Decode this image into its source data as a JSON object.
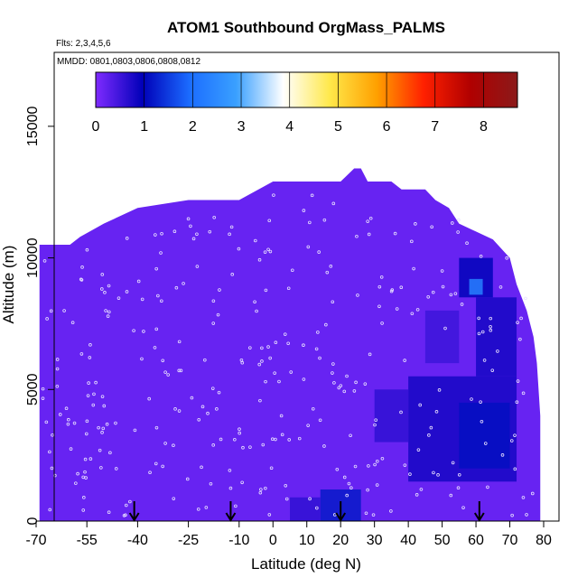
{
  "chart_data": {
    "type": "heatmap",
    "title": "ATOM1 Southbound OrgMass_PALMS",
    "flights_label": "Flts: 2,3,4,5,6",
    "dates_label": "MMDD: 0801,0803,0806,0808,0812",
    "xlabel": "Latitude (deg N)",
    "ylabel": "Altitude (m)",
    "xlim": [
      -70,
      80
    ],
    "ylim": [
      0,
      17500
    ],
    "x_ticks": [
      -70,
      -55,
      -40,
      -25,
      -10,
      0,
      10,
      20,
      30,
      40,
      50,
      60,
      70,
      80
    ],
    "x_tick_labels": [
      "-70",
      "-55",
      "-40",
      "-25",
      "-10",
      "0",
      "10",
      "20",
      "30",
      "40",
      "50",
      "60",
      "70",
      "80"
    ],
    "y_ticks": [
      0,
      5000,
      10000,
      15000
    ],
    "y_tick_labels": [
      "0",
      "5000",
      "10000",
      "15000"
    ],
    "colorbar": {
      "min": 0,
      "max": 8.7,
      "ticks": [
        0,
        1,
        2,
        3,
        4,
        5,
        6,
        7,
        8
      ],
      "tick_labels": [
        "0",
        "1",
        "2",
        "3",
        "4",
        "5",
        "6",
        "7",
        "8"
      ],
      "colors": [
        "#7f2bff",
        "#0000b8",
        "#1b6cff",
        "#3aa0ff",
        "#ffffff",
        "#ffe84a",
        "#ffa000",
        "#ff2000",
        "#b00000",
        "#8b1a1a"
      ]
    },
    "ceiling_profile": [
      [
        -69,
        10500
      ],
      [
        -67,
        10500
      ],
      [
        -60,
        10500
      ],
      [
        -57,
        10800
      ],
      [
        -50,
        11300
      ],
      [
        -40,
        11900
      ],
      [
        -25,
        12200
      ],
      [
        -10,
        12200
      ],
      [
        0,
        12900
      ],
      [
        10,
        12900
      ],
      [
        20,
        12900
      ],
      [
        24,
        13400
      ],
      [
        26,
        13400
      ],
      [
        28,
        12900
      ],
      [
        35,
        12900
      ],
      [
        38,
        12600
      ],
      [
        45,
        12600
      ],
      [
        48,
        12200
      ],
      [
        52,
        11900
      ],
      [
        55,
        11300
      ],
      [
        60,
        11000
      ],
      [
        65,
        10700
      ],
      [
        70,
        10000
      ],
      [
        72,
        9000
      ],
      [
        75,
        8000
      ],
      [
        77,
        7000
      ],
      [
        78,
        6000
      ],
      [
        79,
        4000
      ],
      [
        79,
        500
      ]
    ],
    "blue_regions": [
      {
        "lat": [
          14,
          26
        ],
        "alt": [
          0,
          1200
        ],
        "value": 1.2
      },
      {
        "lat": [
          5,
          14
        ],
        "alt": [
          0,
          900
        ],
        "value": 0.6
      },
      {
        "lat": [
          40,
          72
        ],
        "alt": [
          1500,
          5500
        ],
        "value": 0.8
      },
      {
        "lat": [
          55,
          70
        ],
        "alt": [
          2000,
          4500
        ],
        "value": 1.1
      },
      {
        "lat": [
          60,
          72
        ],
        "alt": [
          5500,
          8500
        ],
        "value": 0.8
      },
      {
        "lat": [
          55,
          65
        ],
        "alt": [
          8500,
          10000
        ],
        "value": 1.0
      },
      {
        "lat": [
          58,
          62
        ],
        "alt": [
          8600,
          9200
        ],
        "value": 2.3
      },
      {
        "lat": [
          30,
          40
        ],
        "alt": [
          3000,
          5000
        ],
        "value": 0.6
      },
      {
        "lat": [
          45,
          55
        ],
        "alt": [
          6000,
          8000
        ],
        "value": 0.5
      }
    ],
    "arrows_lat": [
      -41,
      -12.5,
      20,
      61
    ]
  }
}
